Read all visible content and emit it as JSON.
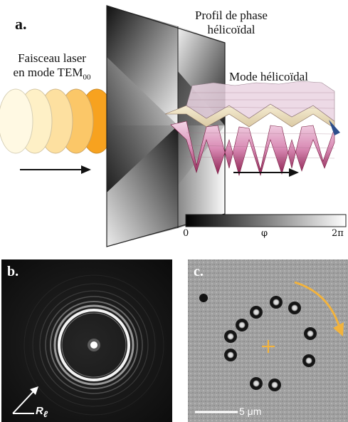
{
  "panel_a": {
    "label": "a.",
    "input_beam_text": [
      "Faisceau laser",
      "en mode TEM"
    ],
    "input_beam_subscript": "00",
    "phase_profile_text": [
      "Profil de phase",
      "hélicoïdal"
    ],
    "helical_mode_text": "Mode hélicoïdal",
    "colorbar": {
      "min_label": "0",
      "mid_label": "φ",
      "max_label": "2π"
    },
    "colors": {
      "beam_light": "#fef3cf",
      "beam_dark": "#f6a623",
      "arrow": "#111111"
    }
  },
  "panel_b": {
    "label": "b.",
    "radius_label": "R",
    "radius_subscript": "ℓ"
  },
  "panel_c": {
    "label": "c.",
    "scale_bar_label": "5 μm",
    "colors": {
      "rotation_arrow": "#f2b33d",
      "center_marker": "#f2b33d"
    }
  }
}
